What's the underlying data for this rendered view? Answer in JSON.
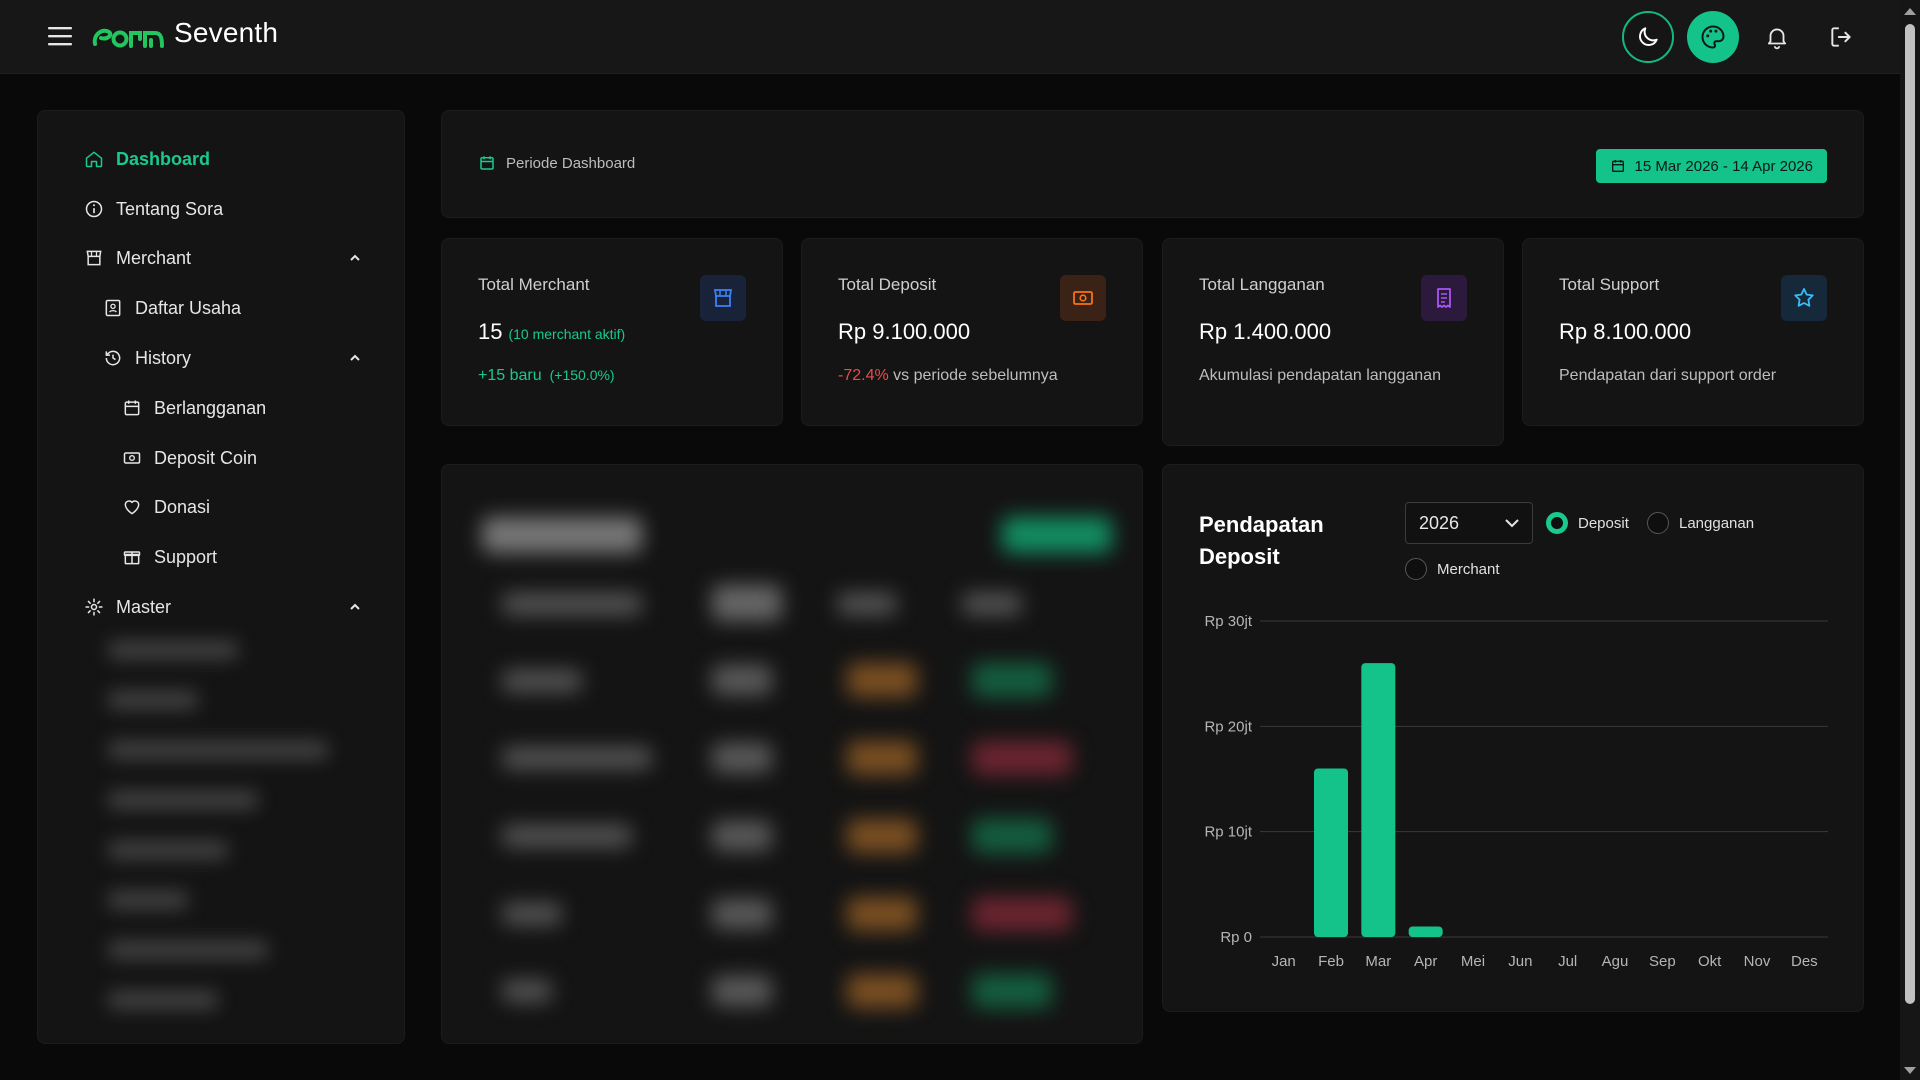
{
  "app": {
    "brand": "Seventh"
  },
  "header": {
    "buttons": [
      "theme-toggle",
      "palette",
      "notifications",
      "logout"
    ]
  },
  "sidebar": {
    "items": [
      {
        "label": "Dashboard",
        "active": true
      },
      {
        "label": "Tentang Sora"
      },
      {
        "label": "Merchant",
        "expanded": true
      },
      {
        "label": "Daftar Usaha"
      },
      {
        "label": "History",
        "expanded": true
      },
      {
        "label": "Berlangganan"
      },
      {
        "label": "Deposit Coin"
      },
      {
        "label": "Donasi"
      },
      {
        "label": "Support"
      },
      {
        "label": "Master",
        "expanded": true
      }
    ]
  },
  "period": {
    "label": "Periode Dashboard",
    "range": "15 Mar 2026 - 14 Apr 2026"
  },
  "stats": [
    {
      "title": "Total Merchant",
      "value": "15",
      "value_sub": "(10 merchant aktif)",
      "foot_main": "+15 baru",
      "foot_sub": "(+150.0%)",
      "icon": "store-icon",
      "icon_color": "#3b82f6"
    },
    {
      "title": "Total Deposit",
      "value": "Rp 9.100.000",
      "foot_change": "-72.4%",
      "foot_text": " vs periode sebelumnya",
      "icon": "banknote-icon",
      "icon_color": "#f97316"
    },
    {
      "title": "Total Langganan",
      "value": "Rp 1.400.000",
      "foot_text": "Akumulasi pendapatan langganan",
      "icon": "receipt-icon",
      "icon_color": "#a855f7"
    },
    {
      "title": "Total Support",
      "value": "Rp 8.100.000",
      "foot_text": "Pendapatan dari support order",
      "icon": "star-icon",
      "icon_color": "#38bdf8"
    }
  ],
  "revenue": {
    "title": "Pendapatan Deposit",
    "year": "2026",
    "options": [
      {
        "label": "Deposit",
        "selected": true
      },
      {
        "label": "Langganan",
        "selected": false
      },
      {
        "label": "Merchant",
        "selected": false
      }
    ]
  },
  "colors": {
    "accent": "#19c98e",
    "bar": "#13c38a"
  },
  "chart_data": {
    "type": "bar",
    "categories": [
      "Jan",
      "Feb",
      "Mar",
      "Apr",
      "Mei",
      "Jun",
      "Jul",
      "Agu",
      "Sep",
      "Okt",
      "Nov",
      "Des"
    ],
    "values": [
      0,
      16000000,
      26000000,
      1000000,
      0,
      0,
      0,
      0,
      0,
      0,
      0,
      0
    ],
    "yticks": [
      0,
      10000000,
      20000000,
      30000000
    ],
    "ytick_labels": [
      "Rp 0",
      "Rp 10jt",
      "Rp 20jt",
      "Rp 30jt"
    ],
    "ylim": [
      0,
      30000000
    ],
    "grid": true,
    "legend": "none"
  }
}
